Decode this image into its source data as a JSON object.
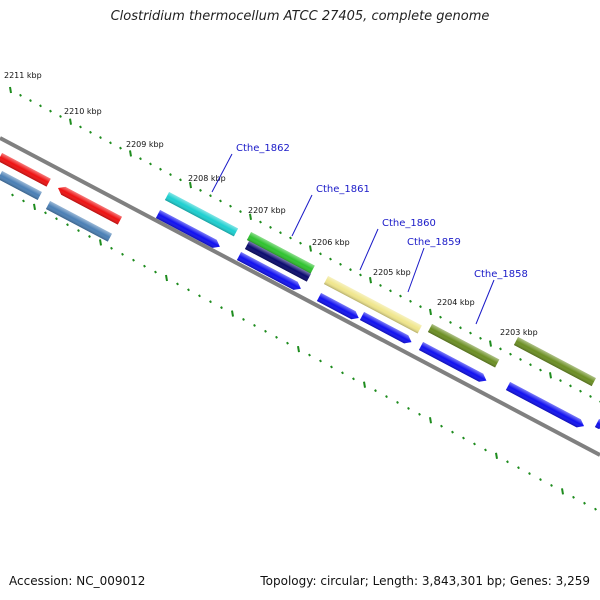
{
  "title": "Clostridium thermocellum ATCC 27405, complete genome",
  "footer": {
    "accession": "Accession: NC_009012",
    "summary": "Topology: circular; Length: 3,843,301 bp; Genes: 3,259"
  },
  "ruler_labels": [
    "2211 kbp",
    "2210 kbp",
    "2209 kbp",
    "2208 kbp",
    "2207 kbp",
    "2206 kbp",
    "2205 kbp",
    "2204 kbp",
    "2203 kbp"
  ],
  "gene_labels": [
    "Cthe_1862",
    "Cthe_1861",
    "Cthe_1860",
    "Cthe_1859",
    "Cthe_1858"
  ],
  "colors": {
    "backbone": "#808080",
    "tick": "#1e8c1e",
    "red": "#ee1111",
    "steel": "#4a7fb5",
    "cyan": "#1ccfd0",
    "green": "#2ec22e",
    "navy": "#0a0a6e",
    "khaki": "#f0e68c",
    "olive": "#6b8e23",
    "blue": "#1010f0",
    "label": "#1a1ac8"
  }
}
